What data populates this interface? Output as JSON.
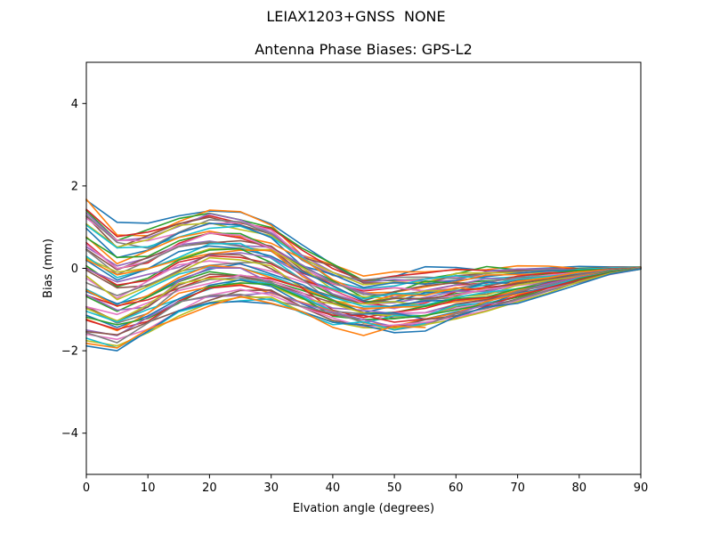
{
  "chart_data": {
    "type": "line",
    "suptitle": "LEIAX1203+GNSS  NONE",
    "title": "Antenna Phase Biases: GPS-L2",
    "xlabel": "Elvation angle (degrees)",
    "ylabel": "Bias (mm)",
    "xlim": [
      0,
      90
    ],
    "ylim": [
      -5,
      5
    ],
    "x_ticks": [
      0,
      10,
      20,
      30,
      40,
      50,
      60,
      70,
      80,
      90
    ],
    "x_tick_labels": [
      "0",
      "10",
      "20",
      "30",
      "40",
      "50",
      "60",
      "70",
      "80",
      "90"
    ],
    "y_ticks": [
      -4,
      -2,
      0,
      2,
      4
    ],
    "y_tick_labels": [
      "−4",
      "−2",
      "0",
      "2",
      "4"
    ],
    "grid": false,
    "legend": false,
    "x": [
      0,
      5,
      10,
      15,
      20,
      25,
      30,
      35,
      40,
      45,
      50,
      55,
      60,
      65,
      70,
      75,
      80,
      85,
      90
    ],
    "envelope_top": [
      1.62,
      0.9,
      0.95,
      1.25,
      1.42,
      1.32,
      1.02,
      0.48,
      0.05,
      -0.24,
      -0.16,
      -0.1,
      -0.05,
      -0.02,
      0.0,
      0.01,
      0.02,
      0.03,
      0.03
    ],
    "envelope_bottom": [
      -1.9,
      -2.02,
      -1.64,
      -1.18,
      -0.92,
      -0.82,
      -0.86,
      -1.1,
      -1.36,
      -1.5,
      -1.52,
      -1.44,
      -1.28,
      -1.06,
      -0.84,
      -0.6,
      -0.36,
      -0.15,
      -0.02
    ],
    "lines": {
      "count": 52,
      "width": 1.6,
      "seed": 7,
      "u_offset_scale": 0.05,
      "jitter_amplitude": 0.1,
      "wave_amplitude": 0.07,
      "jitter_taper": [
        0.6,
        0.9,
        1,
        1,
        1,
        1,
        1,
        1,
        1,
        1,
        1,
        0.9,
        0.8,
        0.65,
        0.5,
        0.38,
        0.25,
        0.12,
        0.04
      ],
      "short_lines": [
        {
          "index": 38,
          "end_x": 60
        },
        {
          "index": 49,
          "end_x": 55
        },
        {
          "index": 51,
          "end_x": 55
        }
      ],
      "colors": [
        "#1f77b4",
        "#ff7f0e",
        "#2ca02c",
        "#d62728",
        "#9467bd",
        "#8c564b",
        "#e377c2",
        "#7f7f7f",
        "#bcbd22",
        "#17becf"
      ]
    },
    "axis_color": "#000000",
    "background_color": "#ffffff"
  }
}
